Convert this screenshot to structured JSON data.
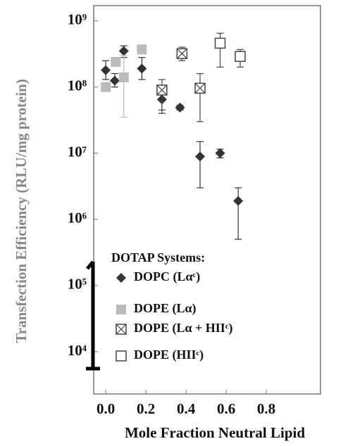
{
  "chart_data": {
    "type": "scatter",
    "y_label": "Transfection Efficiency (RLU/mg protein)",
    "x_label": "Mole Fraction Neutral Lipid",
    "legend_title": "DOTAP Systems:",
    "ylog": true,
    "xlim": [
      -0.06,
      1.07
    ],
    "ylim": [
      2300,
      1700000000
    ],
    "xticks": [
      {
        "value": 0,
        "label": "0.0"
      },
      0.2,
      0.4,
      0.6,
      0.8
    ],
    "yticks": [
      {
        "value": 10000,
        "label": "10⁴"
      },
      {
        "value": 100000,
        "label": "10⁵"
      },
      {
        "value": 1000000,
        "label": "10⁶"
      },
      {
        "value": 10000000,
        "label": "10⁷"
      },
      {
        "value": 100000000,
        "label": "10⁸"
      },
      {
        "value": 1000000000,
        "label": "10⁹"
      }
    ],
    "series": [
      {
        "name": "DOPC (Lαᶜ)",
        "color": "#333333",
        "marker": "diamond",
        "x": [
          0.0,
          0.045,
          0.09,
          0.18,
          0.28,
          0.37,
          0.47,
          0.57,
          0.66
        ],
        "values": [
          180000000,
          125000000,
          350000000,
          190000000,
          65000000,
          49000000,
          8900000,
          10000000,
          1900000
        ],
        "lower": [
          130000000,
          100000000,
          280000000,
          130000000,
          40000000,
          45000000,
          3000000,
          8500000,
          500000
        ],
        "upper": [
          250000000,
          160000000,
          420000000,
          280000000,
          90000000,
          53000000,
          15000000,
          11500000,
          3000000
        ]
      },
      {
        "name": "DOPE (Lα)",
        "color": "#bbbbbb",
        "marker": "square",
        "x": [
          0.0,
          0.05,
          0.09,
          0.18
        ],
        "values": [
          100000000,
          240000000,
          140000000,
          370000000
        ],
        "lower": [
          90000000,
          210000000,
          35000000,
          320000000
        ],
        "upper": [
          110000000,
          270000000,
          300000000,
          420000000
        ]
      },
      {
        "name": "DOPE (Lα + HIIᶜ)",
        "color": "#444444",
        "marker": "crossed-square",
        "x": [
          0.28,
          0.38,
          0.47
        ],
        "values": [
          90000000,
          320000000,
          96000000
        ],
        "lower": [
          45000000,
          250000000,
          30000000
        ],
        "upper": [
          130000000,
          400000000,
          160000000
        ]
      },
      {
        "name": "DOPE (HIIᶜ)",
        "color": "#444444",
        "marker": "open-square",
        "x": [
          0.57,
          0.67
        ],
        "values": [
          460000000,
          290000000
        ],
        "lower": [
          200000000,
          200000000
        ],
        "upper": [
          650000000,
          370000000
        ]
      }
    ]
  }
}
